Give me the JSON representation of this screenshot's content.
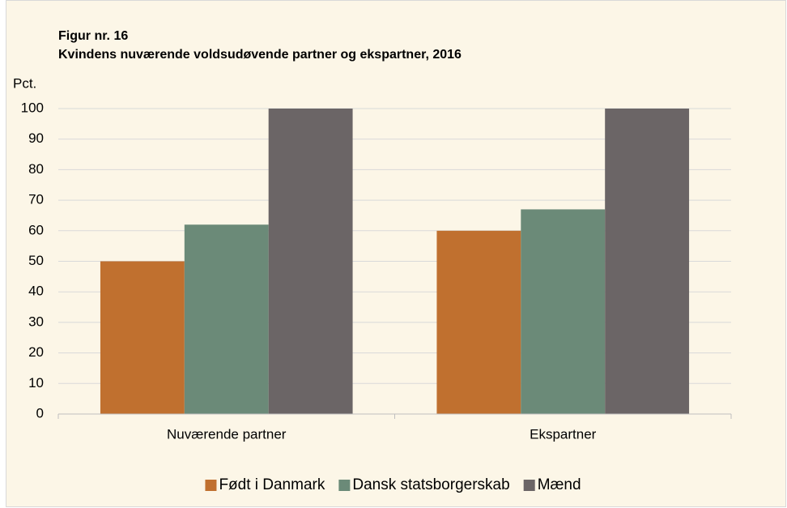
{
  "chart_data": {
    "type": "bar",
    "title": "Figur nr. 16",
    "subtitle": "Kvindens nuværende voldsudøvende partner og ekspartner, 2016",
    "y_axis_label": "Pct.",
    "categories": [
      "Nuværende partner",
      "Ekspartner"
    ],
    "series": [
      {
        "name": "Født i Danmark",
        "color": "#c0702f",
        "values": [
          50,
          60
        ]
      },
      {
        "name": "Dansk statsborgerskab",
        "color": "#6b8a78",
        "values": [
          62,
          67
        ]
      },
      {
        "name": "Mænd",
        "color": "#6b6566",
        "values": [
          100,
          100
        ]
      }
    ],
    "ylim": [
      0,
      100
    ],
    "yticks": [
      0,
      10,
      20,
      30,
      40,
      50,
      60,
      70,
      80,
      90,
      100
    ],
    "grid": true,
    "legend": "bottom"
  }
}
